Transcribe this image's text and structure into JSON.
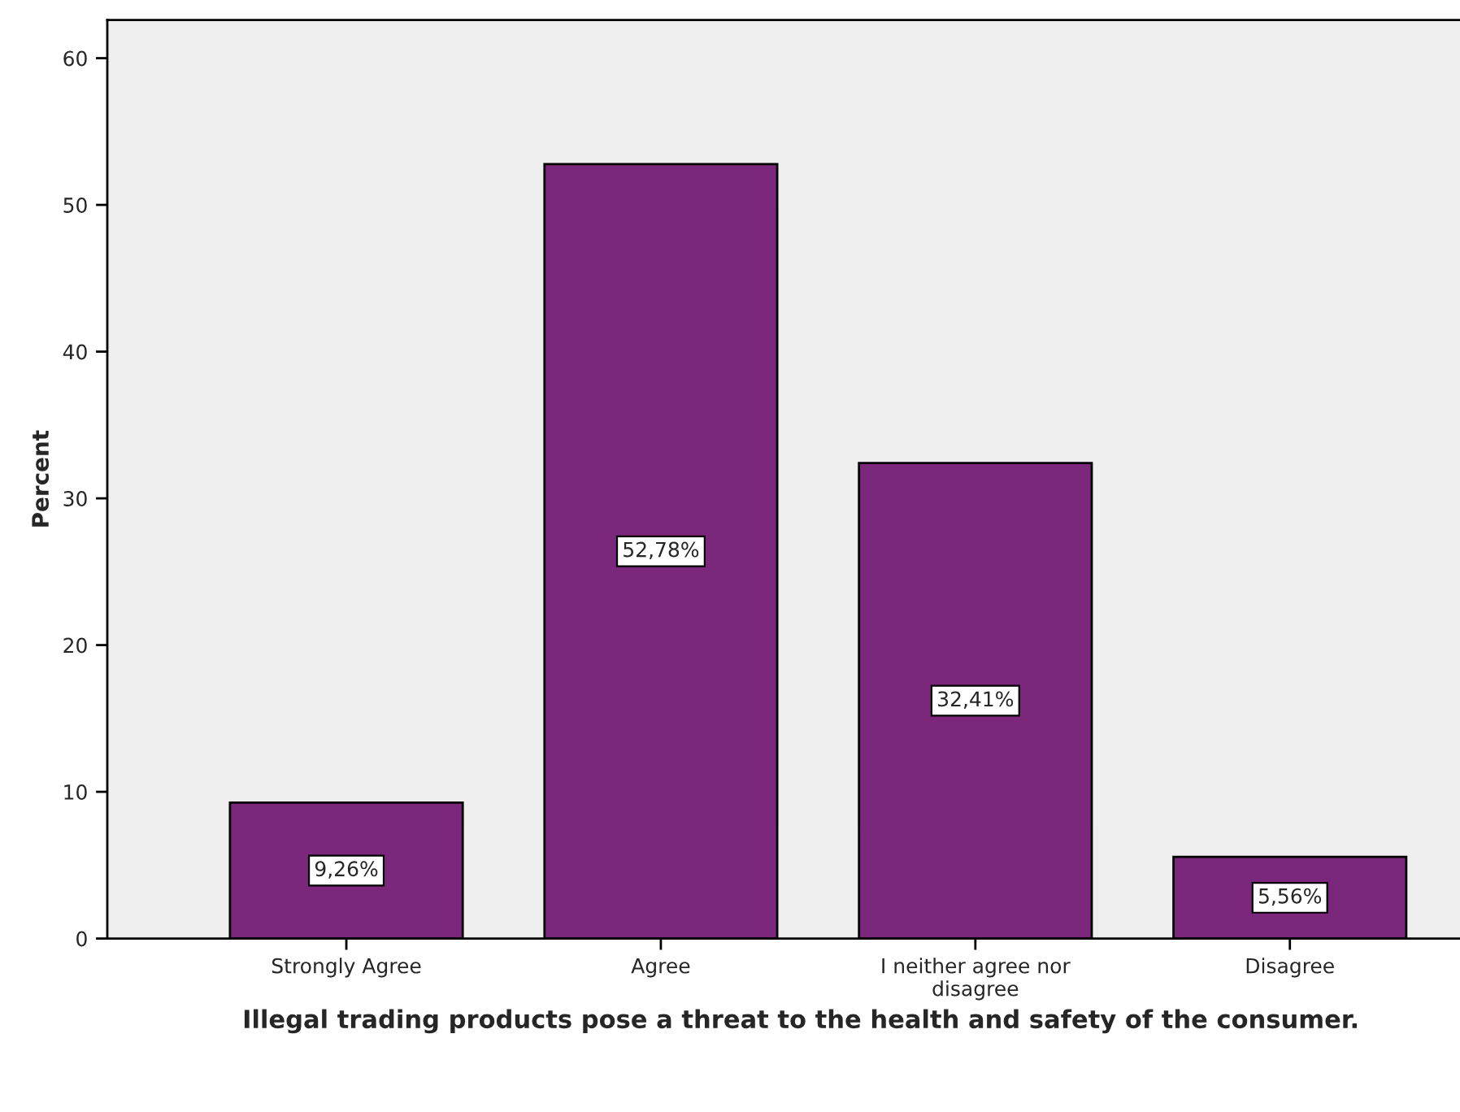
{
  "chart_data": {
    "type": "bar",
    "xlabel": "Illegal trading products pose a threat to the health and safety of the consumer.",
    "ylabel": "Percent",
    "categories": [
      "Strongly Agree",
      "Agree",
      "I neither agree nor\ndisagree",
      "Disagree"
    ],
    "values": [
      9.26,
      52.78,
      32.41,
      5.56
    ],
    "value_labels": [
      "9,26%",
      "52,78%",
      "32,41%",
      "5,56%"
    ],
    "color": "#7b277b",
    "ylim": [
      0,
      62.6
    ],
    "yticks": [
      0,
      10,
      20,
      30,
      40,
      50,
      60
    ],
    "grid": false
  }
}
